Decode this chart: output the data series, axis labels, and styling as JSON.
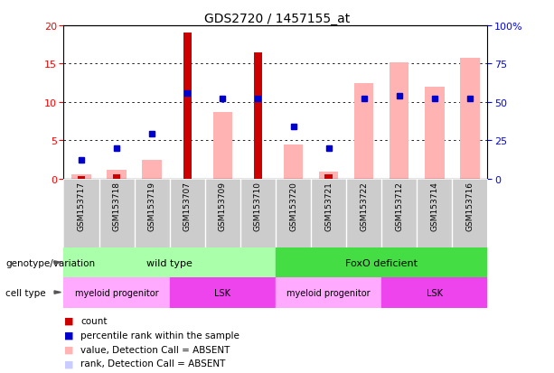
{
  "title": "GDS2720 / 1457155_at",
  "samples": [
    "GSM153717",
    "GSM153718",
    "GSM153719",
    "GSM153707",
    "GSM153709",
    "GSM153710",
    "GSM153720",
    "GSM153721",
    "GSM153722",
    "GSM153712",
    "GSM153714",
    "GSM153716"
  ],
  "count": [
    0.3,
    0.5,
    0,
    19.0,
    0,
    16.5,
    0,
    0.5,
    0,
    0,
    0,
    0
  ],
  "rank": [
    2.5,
    4.0,
    5.8,
    11.2,
    10.5,
    10.5,
    6.8,
    4.0,
    10.5,
    10.8,
    10.5,
    10.5
  ],
  "value_absent": [
    0.5,
    1.2,
    2.5,
    0,
    8.7,
    0,
    4.5,
    0.9,
    12.5,
    15.2,
    12.0,
    15.8
  ],
  "rank_absent": [
    2.5,
    4.0,
    5.8,
    0,
    10.5,
    0,
    6.8,
    4.0,
    0,
    0,
    0,
    0
  ],
  "ylim_left": [
    0,
    20
  ],
  "ylim_right": [
    0,
    100
  ],
  "yticks_left": [
    0,
    5,
    10,
    15,
    20
  ],
  "yticks_right": [
    0,
    25,
    50,
    75,
    100
  ],
  "ytick_right_labels": [
    "0",
    "25",
    "50",
    "75",
    "100%"
  ],
  "color_count": "#cc0000",
  "color_rank": "#0000cc",
  "color_value_absent": "#ffb3b3",
  "color_rank_absent": "#c8ccff",
  "geno_light_green": "#aaffaa",
  "geno_dark_green": "#44dd55",
  "cell_light_pink": "#ffaaff",
  "cell_dark_pink": "#ee44ee",
  "legend_items": [
    {
      "label": "count",
      "color": "#cc0000"
    },
    {
      "label": "percentile rank within the sample",
      "color": "#0000cc"
    },
    {
      "label": "value, Detection Call = ABSENT",
      "color": "#ffb3b3"
    },
    {
      "label": "rank, Detection Call = ABSENT",
      "color": "#c8ccff"
    }
  ]
}
